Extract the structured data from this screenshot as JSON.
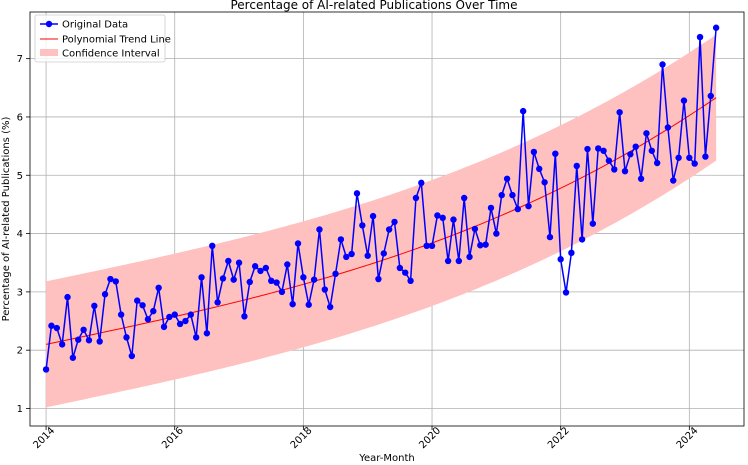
{
  "chart_data": {
    "type": "line",
    "title": "Percentage of AI-related Publications Over Time",
    "xlabel": "Year-Month",
    "ylabel": "Percentage of AI-related Publications (%)",
    "xlim": [
      2013.75,
      2024.85
    ],
    "ylim": [
      0.7,
      7.8
    ],
    "x_ticks": [
      2014,
      2016,
      2018,
      2020,
      2022,
      2024
    ],
    "y_ticks": [
      1,
      2,
      3,
      4,
      5,
      6,
      7
    ],
    "grid": true,
    "legend_position": "top-left",
    "legend": {
      "original": "Original Data",
      "trend": "Polynomial Trend Line",
      "ci": "Confidence Interval"
    },
    "colors": {
      "data": "#0000ff",
      "trend": "#ff0000",
      "ci_fill": "#ffc0c0",
      "grid": "#b0b0b0"
    },
    "start_year": 2014.0,
    "step_years": 0.0833333,
    "series": [
      {
        "name": "Original Data",
        "values": [
          1.67,
          2.42,
          2.38,
          2.1,
          2.91,
          1.87,
          2.18,
          2.35,
          2.17,
          2.76,
          2.15,
          2.96,
          3.22,
          3.18,
          2.61,
          2.22,
          1.9,
          2.85,
          2.77,
          2.53,
          2.67,
          3.07,
          2.4,
          2.57,
          2.61,
          2.45,
          2.5,
          2.61,
          2.22,
          3.25,
          2.29,
          3.79,
          2.82,
          3.23,
          3.53,
          3.21,
          3.5,
          2.58,
          3.17,
          3.44,
          3.36,
          3.41,
          3.19,
          3.16,
          3.0,
          3.47,
          2.79,
          3.83,
          3.25,
          2.78,
          3.21,
          4.07,
          3.04,
          2.74,
          3.31,
          3.9,
          3.6,
          3.65,
          4.69,
          4.14,
          3.62,
          4.3,
          3.22,
          3.66,
          4.07,
          4.2,
          3.41,
          3.33,
          3.19,
          4.61,
          4.87,
          3.79,
          3.79,
          4.31,
          4.27,
          3.53,
          4.24,
          3.53,
          4.61,
          3.6,
          4.08,
          3.8,
          3.81,
          4.44,
          4.0,
          4.66,
          4.94,
          4.66,
          4.42,
          6.1,
          4.47,
          5.4,
          5.11,
          4.88,
          3.94,
          5.37,
          3.56,
          2.99,
          3.67,
          5.16,
          3.9,
          5.45,
          4.17,
          5.46,
          5.42,
          5.25,
          5.1,
          6.08,
          5.07,
          5.36,
          5.49,
          4.94,
          5.72,
          5.42,
          5.21,
          6.9,
          5.82,
          4.91,
          5.3,
          6.28,
          5.3,
          5.2,
          7.37,
          5.32,
          6.36,
          7.53
        ]
      },
      {
        "name": "Polynomial Trend Line",
        "coefficients": [
          2.1,
          0.2315,
          0.0001,
          0.0016
        ]
      },
      {
        "name": "Confidence Interval",
        "half_width": 1.08
      }
    ]
  }
}
